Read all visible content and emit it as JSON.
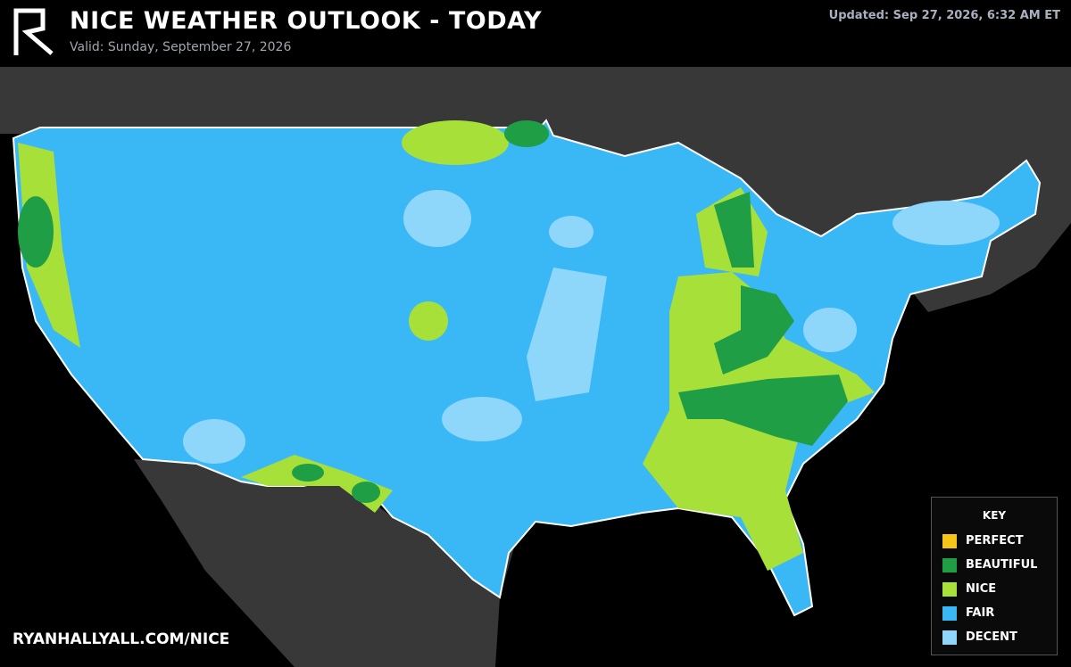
{
  "header": {
    "title": "NICE WEATHER OUTLOOK - TODAY",
    "valid": "Valid: Sunday, September 27, 2026",
    "updated": "Updated: Sep 27, 2026, 6:32 AM ET"
  },
  "key": {
    "title": "KEY",
    "items": [
      {
        "label": "PERFECT",
        "color": "#f5c518"
      },
      {
        "label": "BEAUTIFUL",
        "color": "#1f9e45"
      },
      {
        "label": "NICE",
        "color": "#a8e03a"
      },
      {
        "label": "FAIR",
        "color": "#3ab8f6"
      },
      {
        "label": "DECENT",
        "color": "#8fd6fb"
      }
    ]
  },
  "footer": {
    "url": "RYANHALLYALL.COM/NICE"
  }
}
